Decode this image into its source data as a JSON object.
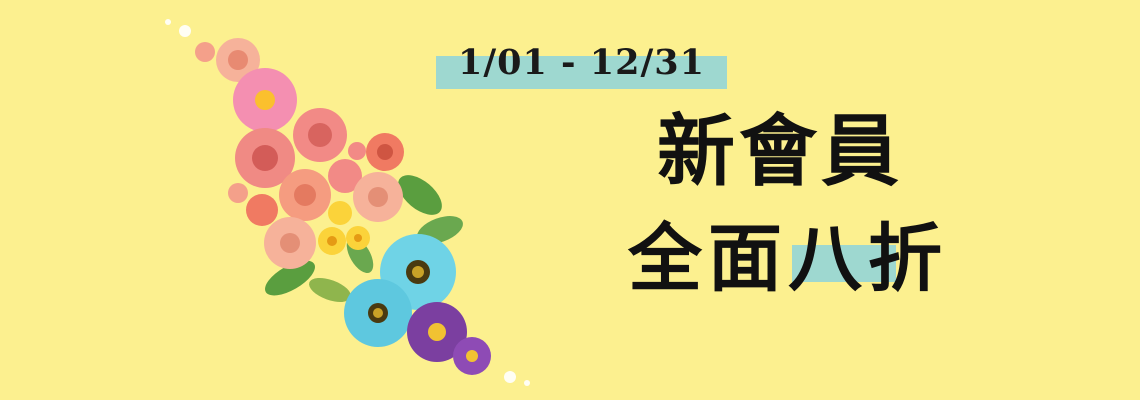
{
  "banner": {
    "date_range": "1/01 - 12/31",
    "headline": "新會員",
    "subheadline": "全面八折",
    "background_color": "#fcf08f",
    "accent_color": "#9ed8d0"
  },
  "illustration": {
    "name": "flower-bouquet",
    "flower_colors": [
      "#f28a86",
      "#f48fb1",
      "#fbc02d",
      "#6fd3e6",
      "#7b3fa0",
      "#6aa84f"
    ]
  }
}
